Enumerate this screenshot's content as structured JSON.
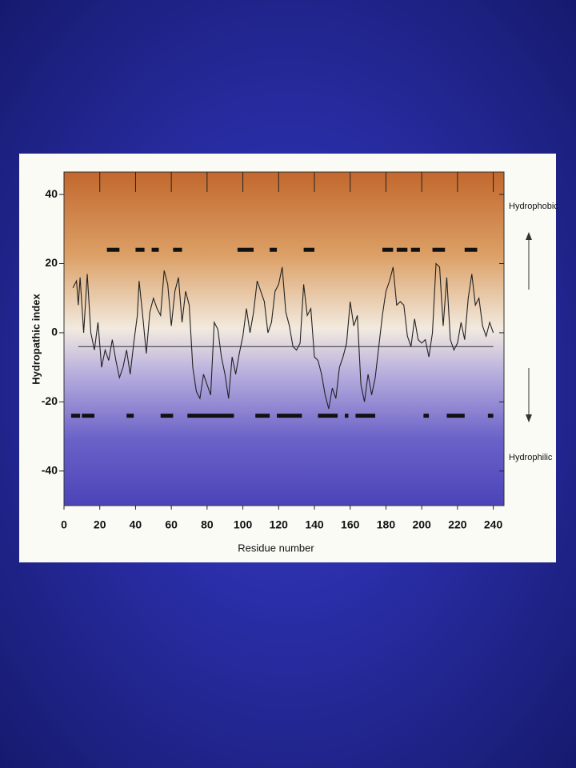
{
  "chart_data": {
    "type": "line",
    "x_label": "Residue number",
    "y_label": "Hydropathic index",
    "upper_label": "Hydrophobic",
    "lower_label": "Hydrophilic",
    "color": "#222222",
    "x": [
      5,
      7,
      8,
      9,
      11,
      13,
      15,
      17,
      19,
      21,
      23,
      25,
      27,
      29,
      31,
      33,
      35,
      37,
      39,
      41,
      42,
      44,
      46,
      48,
      50,
      52,
      54,
      56,
      58,
      60,
      62,
      64,
      66,
      68,
      70,
      72,
      74,
      76,
      78,
      80,
      82,
      84,
      86,
      88,
      90,
      92,
      94,
      96,
      98,
      100,
      102,
      104,
      106,
      108,
      110,
      112,
      114,
      116,
      118,
      120,
      122,
      124,
      126,
      128,
      130,
      132,
      134,
      136,
      138,
      140,
      142,
      144,
      146,
      148,
      150,
      152,
      154,
      156,
      158,
      160,
      162,
      164,
      166,
      168,
      170,
      172,
      174,
      176,
      178,
      180,
      182,
      184,
      186,
      188,
      190,
      192,
      194,
      196,
      198,
      200,
      202,
      204,
      206,
      208,
      210,
      212,
      214,
      216,
      218,
      220,
      222,
      224,
      226,
      228,
      230,
      232,
      234,
      236,
      238,
      240
    ],
    "values": [
      13,
      15,
      8,
      16,
      0,
      17,
      0,
      -5,
      3,
      -10,
      -5,
      -8,
      -2,
      -8,
      -13,
      -10,
      -5,
      -12,
      -3,
      5,
      15,
      5,
      -6,
      6,
      10,
      7,
      5,
      18,
      14,
      2,
      12,
      16,
      3,
      12,
      8,
      -10,
      -17,
      -19,
      -12,
      -15,
      -18,
      3,
      1,
      -7,
      -12,
      -19,
      -7,
      -12,
      -6,
      -1,
      7,
      0,
      6,
      15,
      12,
      9,
      0,
      3,
      12,
      14,
      19,
      6,
      2,
      -4,
      -5,
      -3,
      14,
      5,
      7,
      -7,
      -8,
      -12,
      -18,
      -22,
      -16,
      -19,
      -10,
      -7,
      -3,
      9,
      2,
      5,
      -15,
      -20,
      -12,
      -18,
      -13,
      -4,
      5,
      12,
      15,
      19,
      8,
      9,
      8,
      -1,
      -4,
      4,
      -2,
      -3,
      -2,
      -7,
      0,
      20,
      19,
      2,
      16,
      -2,
      -5,
      -3,
      3,
      -2,
      10,
      17,
      8,
      10,
      2,
      -1,
      3,
      0
    ],
    "reference_line": {
      "y": -4,
      "x": [
        8,
        240
      ]
    },
    "hydrophobic_segments": {
      "y": 24,
      "ranges": [
        [
          24,
          31
        ],
        [
          40,
          45
        ],
        [
          49,
          53
        ],
        [
          61,
          66
        ],
        [
          97,
          106
        ],
        [
          115,
          119
        ],
        [
          134,
          140
        ],
        [
          178,
          184
        ],
        [
          186,
          192
        ],
        [
          194,
          199
        ],
        [
          206,
          213
        ],
        [
          224,
          231
        ]
      ]
    },
    "hydrophilic_segments": {
      "y": -24,
      "ranges": [
        [
          4,
          9
        ],
        [
          10,
          17
        ],
        [
          35,
          39
        ],
        [
          54,
          61
        ],
        [
          69,
          95
        ],
        [
          107,
          115
        ],
        [
          119,
          133
        ],
        [
          142,
          153
        ],
        [
          157,
          159
        ],
        [
          163,
          174
        ],
        [
          201,
          204
        ],
        [
          214,
          224
        ],
        [
          237,
          240
        ]
      ]
    },
    "xlim": [
      0,
      246
    ],
    "ylim": [
      -50,
      46.5
    ],
    "xticks": [
      0,
      20,
      40,
      60,
      80,
      100,
      120,
      140,
      160,
      180,
      200,
      220,
      240
    ],
    "yticks": [
      -40,
      -20,
      0,
      20,
      40
    ]
  }
}
